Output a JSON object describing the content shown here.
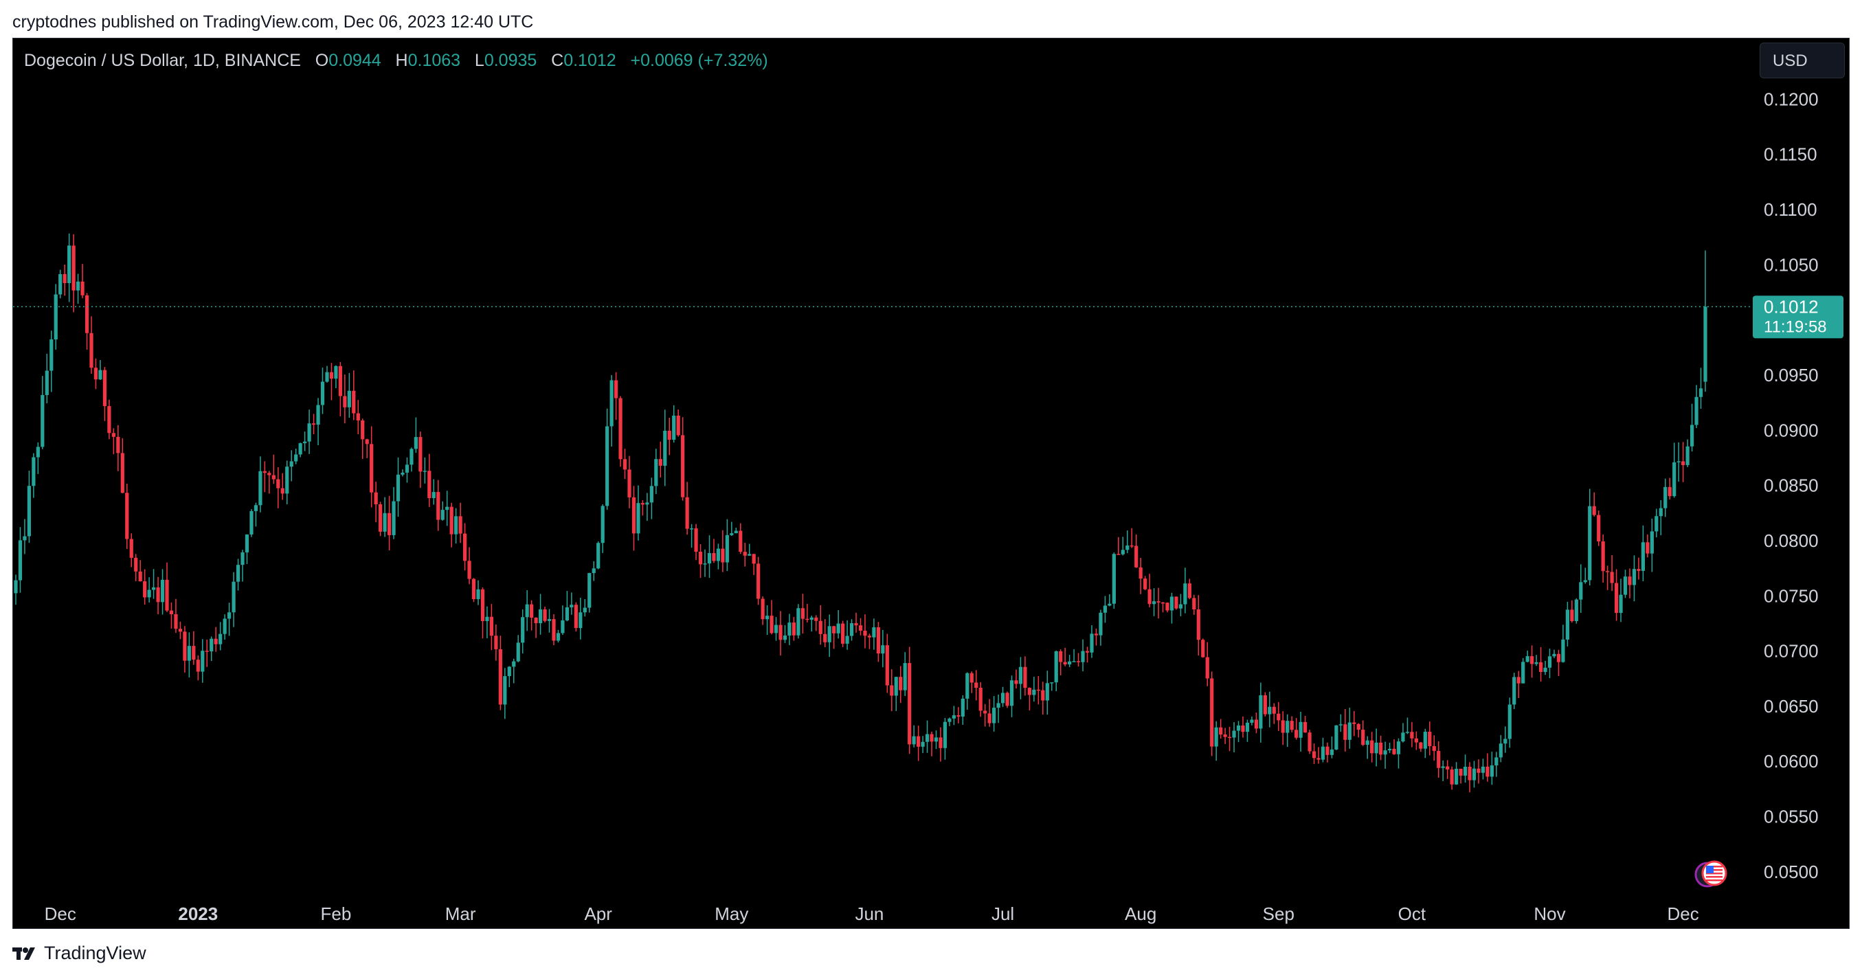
{
  "publication": "cryptodnes published on TradingView.com, Dec 06, 2023 12:40 UTC",
  "header": {
    "symbol": "Dogecoin / US Dollar, 1D, BINANCE",
    "open_label": "O",
    "open": "0.0944",
    "high_label": "H",
    "high": "0.1063",
    "low_label": "L",
    "low": "0.0935",
    "close_label": "C",
    "close": "0.1012",
    "change": "+0.0069 (+7.32%)"
  },
  "currency_button": "USD",
  "price_tag": {
    "price": "0.1012",
    "countdown": "11:19:58"
  },
  "footer_brand": "TradingView",
  "colors": {
    "up": "#26a69a",
    "down": "#f23645",
    "background": "#000000",
    "text": "#d1d4dc"
  },
  "icons": [
    "tradingview-logo-icon",
    "us-flag-icon"
  ],
  "chart_data": {
    "type": "candlestick",
    "title": "Dogecoin / US Dollar, 1D, BINANCE",
    "ylim": [
      0.048,
      0.1255
    ],
    "yticks": [
      "0.0500",
      "0.0550",
      "0.0600",
      "0.0650",
      "0.0700",
      "0.0750",
      "0.0800",
      "0.0850",
      "0.0900",
      "0.0950",
      "0.1050",
      "0.1100",
      "0.1150",
      "0.1200"
    ],
    "xticks": [
      {
        "label": "Dec",
        "date": "2022-12-01",
        "bold": false
      },
      {
        "label": "2023",
        "date": "2023-01-01",
        "bold": true
      },
      {
        "label": "Feb",
        "date": "2023-02-01",
        "bold": false
      },
      {
        "label": "Mar",
        "date": "2023-03-01",
        "bold": false
      },
      {
        "label": "Apr",
        "date": "2023-04-01",
        "bold": false
      },
      {
        "label": "May",
        "date": "2023-05-01",
        "bold": false
      },
      {
        "label": "Jun",
        "date": "2023-06-01",
        "bold": false
      },
      {
        "label": "Jul",
        "date": "2023-07-01",
        "bold": false
      },
      {
        "label": "Aug",
        "date": "2023-08-01",
        "bold": false
      },
      {
        "label": "Sep",
        "date": "2023-09-01",
        "bold": false
      },
      {
        "label": "Oct",
        "date": "2023-10-01",
        "bold": false
      },
      {
        "label": "Nov",
        "date": "2023-11-01",
        "bold": false
      },
      {
        "label": "Dec",
        "date": "2023-12-01",
        "bold": false
      }
    ],
    "xrange": [
      "2022-11-21",
      "2023-12-06"
    ],
    "current_price": 0.1012,
    "close_anchors": [
      [
        "2022-11-21",
        0.076
      ],
      [
        "2022-11-24",
        0.084
      ],
      [
        "2022-11-27",
        0.092
      ],
      [
        "2022-11-29",
        0.099
      ],
      [
        "2022-12-01",
        0.103
      ],
      [
        "2022-12-03",
        0.105
      ],
      [
        "2022-12-06",
        0.101
      ],
      [
        "2022-12-08",
        0.096
      ],
      [
        "2022-12-11",
        0.093
      ],
      [
        "2022-12-14",
        0.088
      ],
      [
        "2022-12-16",
        0.08
      ],
      [
        "2022-12-18",
        0.076
      ],
      [
        "2022-12-20",
        0.0745
      ],
      [
        "2022-12-24",
        0.0755
      ],
      [
        "2022-12-26",
        0.074
      ],
      [
        "2022-12-28",
        0.071
      ],
      [
        "2022-12-31",
        0.069
      ],
      [
        "2023-01-03",
        0.07
      ],
      [
        "2023-01-06",
        0.072
      ],
      [
        "2023-01-10",
        0.077
      ],
      [
        "2023-01-13",
        0.083
      ],
      [
        "2023-01-16",
        0.087
      ],
      [
        "2023-01-20",
        0.085
      ],
      [
        "2023-01-24",
        0.088
      ],
      [
        "2023-01-28",
        0.092
      ],
      [
        "2023-01-31",
        0.095
      ],
      [
        "2023-02-04",
        0.092
      ],
      [
        "2023-02-08",
        0.088
      ],
      [
        "2023-02-10",
        0.082
      ],
      [
        "2023-02-13",
        0.081
      ],
      [
        "2023-02-16",
        0.087
      ],
      [
        "2023-02-19",
        0.089
      ],
      [
        "2023-02-22",
        0.085
      ],
      [
        "2023-02-25",
        0.082
      ],
      [
        "2023-02-28",
        0.081
      ],
      [
        "2023-03-03",
        0.076
      ],
      [
        "2023-03-06",
        0.074
      ],
      [
        "2023-03-09",
        0.069
      ],
      [
        "2023-03-10",
        0.066
      ],
      [
        "2023-03-13",
        0.07
      ],
      [
        "2023-03-16",
        0.073
      ],
      [
        "2023-03-19",
        0.074
      ],
      [
        "2023-03-22",
        0.072
      ],
      [
        "2023-03-25",
        0.074
      ],
      [
        "2023-03-28",
        0.073
      ],
      [
        "2023-03-31",
        0.078
      ],
      [
        "2023-04-02",
        0.082
      ],
      [
        "2023-04-04",
        0.096
      ],
      [
        "2023-04-06",
        0.088
      ],
      [
        "2023-04-09",
        0.082
      ],
      [
        "2023-04-12",
        0.084
      ],
      [
        "2023-04-15",
        0.087
      ],
      [
        "2023-04-18",
        0.092
      ],
      [
        "2023-04-20",
        0.085
      ],
      [
        "2023-04-22",
        0.08
      ],
      [
        "2023-04-25",
        0.078
      ],
      [
        "2023-04-28",
        0.079
      ],
      [
        "2023-05-01",
        0.08
      ],
      [
        "2023-05-04",
        0.079
      ],
      [
        "2023-05-07",
        0.076
      ],
      [
        "2023-05-09",
        0.072
      ],
      [
        "2023-05-12",
        0.0715
      ],
      [
        "2023-05-16",
        0.073
      ],
      [
        "2023-05-20",
        0.072
      ],
      [
        "2023-05-24",
        0.071
      ],
      [
        "2023-05-28",
        0.072
      ],
      [
        "2023-05-31",
        0.072
      ],
      [
        "2023-06-03",
        0.071
      ],
      [
        "2023-06-06",
        0.066
      ],
      [
        "2023-06-09",
        0.068
      ],
      [
        "2023-06-10",
        0.062
      ],
      [
        "2023-06-13",
        0.0615
      ],
      [
        "2023-06-17",
        0.062
      ],
      [
        "2023-06-20",
        0.064
      ],
      [
        "2023-06-23",
        0.067
      ],
      [
        "2023-06-26",
        0.065
      ],
      [
        "2023-06-29",
        0.064
      ],
      [
        "2023-07-02",
        0.066
      ],
      [
        "2023-07-05",
        0.068
      ],
      [
        "2023-07-08",
        0.066
      ],
      [
        "2023-07-10",
        0.065
      ],
      [
        "2023-07-13",
        0.07
      ],
      [
        "2023-07-16",
        0.069
      ],
      [
        "2023-07-19",
        0.07
      ],
      [
        "2023-07-22",
        0.072
      ],
      [
        "2023-07-24",
        0.073
      ],
      [
        "2023-07-27",
        0.08
      ],
      [
        "2023-07-30",
        0.079
      ],
      [
        "2023-08-02",
        0.075
      ],
      [
        "2023-08-05",
        0.074
      ],
      [
        "2023-08-08",
        0.075
      ],
      [
        "2023-08-11",
        0.0755
      ],
      [
        "2023-08-14",
        0.072
      ],
      [
        "2023-08-16",
        0.068
      ],
      [
        "2023-08-17",
        0.062
      ],
      [
        "2023-08-20",
        0.063
      ],
      [
        "2023-08-23",
        0.0635
      ],
      [
        "2023-08-26",
        0.063
      ],
      [
        "2023-08-28",
        0.065
      ],
      [
        "2023-08-31",
        0.064
      ],
      [
        "2023-09-03",
        0.0635
      ],
      [
        "2023-09-06",
        0.063
      ],
      [
        "2023-09-10",
        0.0605
      ],
      [
        "2023-09-14",
        0.0625
      ],
      [
        "2023-09-18",
        0.0625
      ],
      [
        "2023-09-22",
        0.0615
      ],
      [
        "2023-09-26",
        0.0605
      ],
      [
        "2023-09-30",
        0.062
      ],
      [
        "2023-10-03",
        0.062
      ],
      [
        "2023-10-06",
        0.061
      ],
      [
        "2023-10-09",
        0.059
      ],
      [
        "2023-10-12",
        0.0585
      ],
      [
        "2023-10-15",
        0.059
      ],
      [
        "2023-10-18",
        0.0595
      ],
      [
        "2023-10-20",
        0.061
      ],
      [
        "2023-10-22",
        0.062
      ],
      [
        "2023-10-24",
        0.067
      ],
      [
        "2023-10-26",
        0.069
      ],
      [
        "2023-10-28",
        0.068
      ],
      [
        "2023-10-31",
        0.068
      ],
      [
        "2023-11-03",
        0.07
      ],
      [
        "2023-11-06",
        0.074
      ],
      [
        "2023-11-09",
        0.077
      ],
      [
        "2023-11-10",
        0.083
      ],
      [
        "2023-11-12",
        0.08
      ],
      [
        "2023-11-14",
        0.076
      ],
      [
        "2023-11-16",
        0.074
      ],
      [
        "2023-11-18",
        0.076
      ],
      [
        "2023-11-20",
        0.078
      ],
      [
        "2023-11-22",
        0.079
      ],
      [
        "2023-11-24",
        0.081
      ],
      [
        "2023-11-26",
        0.083
      ],
      [
        "2023-11-28",
        0.085
      ],
      [
        "2023-11-30",
        0.087
      ],
      [
        "2023-12-02",
        0.088
      ],
      [
        "2023-12-04",
        0.0944
      ],
      [
        "2023-12-05",
        0.0944
      ],
      [
        "2023-12-06",
        0.1012
      ]
    ],
    "last_candle": {
      "date": "2023-12-06",
      "open": 0.0944,
      "high": 0.1063,
      "low": 0.0935,
      "close": 0.1012
    }
  }
}
